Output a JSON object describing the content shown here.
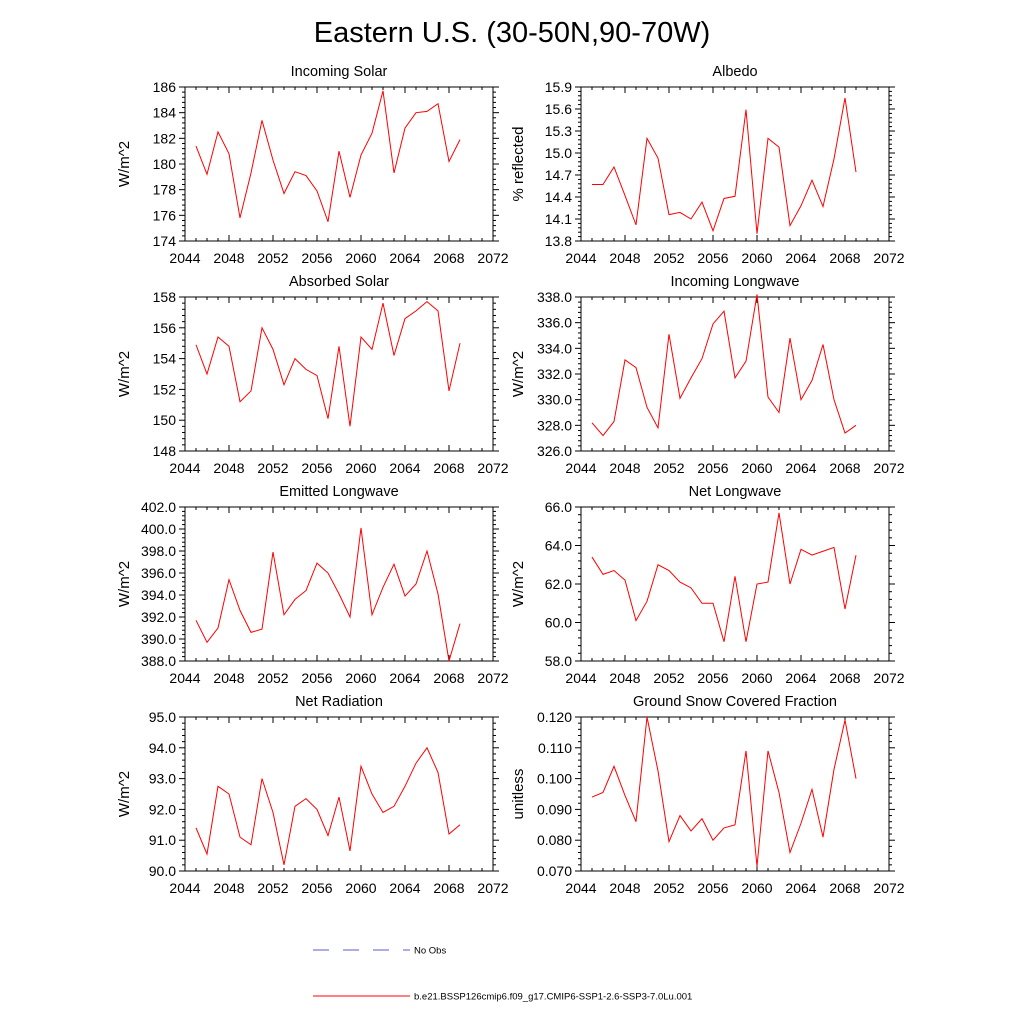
{
  "figure_title": "Eastern U.S. (30-50N,90-70W)",
  "legend": {
    "obs_label": "No Obs",
    "obs_color": "#5a5ad0",
    "model_label": "b.e21.BSSP126cmip6.f09_g17.CMIP6-SSP1-2.6-SSP3-7.0Lu.001",
    "model_color": "#ff0000"
  },
  "chart_data": [
    {
      "type": "line",
      "title": "Incoming Solar",
      "xlabel": "",
      "ylabel": "W/m^2",
      "xlim": [
        2044,
        2072
      ],
      "xticks": [
        "2044",
        "2048",
        "2052",
        "2056",
        "2060",
        "2064",
        "2068",
        "2072"
      ],
      "ylim": [
        174,
        186
      ],
      "yticks": [
        "174",
        "176",
        "178",
        "180",
        "182",
        "184",
        "186"
      ],
      "series": [
        {
          "name": "",
          "color": "#ff0000",
          "x": [
            2045,
            2046,
            2047,
            2048,
            2049,
            2050,
            2051,
            2052,
            2053,
            2054,
            2055,
            2056,
            2057,
            2058,
            2059,
            2060,
            2061,
            2062,
            2063,
            2064,
            2065,
            2066,
            2067,
            2068,
            2069
          ],
          "values": [
            181.4,
            179.2,
            182.5,
            180.8,
            175.8,
            179.3,
            183.4,
            180.3,
            177.7,
            179.4,
            179.1,
            177.9,
            175.5,
            181.0,
            177.4,
            180.7,
            182.4,
            185.7,
            179.3,
            182.8,
            184.0,
            184.1,
            184.7,
            180.2,
            181.9
          ]
        }
      ]
    },
    {
      "type": "line",
      "title": "Albedo",
      "xlabel": "",
      "ylabel": "% reflected",
      "xlim": [
        2044,
        2072
      ],
      "xticks": [
        "2044",
        "2048",
        "2052",
        "2056",
        "2060",
        "2064",
        "2068",
        "2072"
      ],
      "ylim": [
        13.8,
        15.9
      ],
      "yticks": [
        "13.8",
        "14.1",
        "14.4",
        "14.7",
        "15.0",
        "15.3",
        "15.6",
        "15.9"
      ],
      "series": [
        {
          "name": "",
          "color": "#ff0000",
          "x": [
            2045,
            2046,
            2047,
            2048,
            2049,
            2050,
            2051,
            2052,
            2053,
            2054,
            2055,
            2056,
            2057,
            2058,
            2059,
            2060,
            2061,
            2062,
            2063,
            2064,
            2065,
            2066,
            2067,
            2068,
            2069
          ],
          "values": [
            14.57,
            14.57,
            14.81,
            14.42,
            14.02,
            15.2,
            14.93,
            14.16,
            14.19,
            14.1,
            14.33,
            13.94,
            14.38,
            14.41,
            15.59,
            13.9,
            15.2,
            15.08,
            14.01,
            14.28,
            14.63,
            14.27,
            14.92,
            15.75,
            14.74
          ]
        }
      ]
    },
    {
      "type": "line",
      "title": "Absorbed Solar",
      "xlabel": "",
      "ylabel": "W/m^2",
      "xlim": [
        2044,
        2072
      ],
      "xticks": [
        "2044",
        "2048",
        "2052",
        "2056",
        "2060",
        "2064",
        "2068",
        "2072"
      ],
      "ylim": [
        148,
        158
      ],
      "yticks": [
        "148",
        "150",
        "152",
        "154",
        "156",
        "158"
      ],
      "series": [
        {
          "name": "",
          "color": "#ff0000",
          "x": [
            2045,
            2046,
            2047,
            2048,
            2049,
            2050,
            2051,
            2052,
            2053,
            2054,
            2055,
            2056,
            2057,
            2058,
            2059,
            2060,
            2061,
            2062,
            2063,
            2064,
            2065,
            2066,
            2067,
            2068,
            2069
          ],
          "values": [
            154.9,
            153.0,
            155.4,
            154.8,
            151.2,
            151.9,
            156.0,
            154.6,
            152.3,
            154.0,
            153.3,
            152.9,
            150.1,
            154.8,
            149.6,
            155.4,
            154.6,
            157.6,
            154.2,
            156.6,
            157.1,
            157.7,
            157.1,
            151.9,
            155.0
          ]
        }
      ]
    },
    {
      "type": "line",
      "title": "Incoming Longwave",
      "xlabel": "",
      "ylabel": "W/m^2",
      "xlim": [
        2044,
        2072
      ],
      "xticks": [
        "2044",
        "2048",
        "2052",
        "2056",
        "2060",
        "2064",
        "2068",
        "2072"
      ],
      "ylim": [
        326,
        338
      ],
      "yticks": [
        "326.0",
        "328.0",
        "330.0",
        "332.0",
        "334.0",
        "336.0",
        "338.0"
      ],
      "series": [
        {
          "name": "",
          "color": "#ff0000",
          "x": [
            2045,
            2046,
            2047,
            2048,
            2049,
            2050,
            2051,
            2052,
            2053,
            2054,
            2055,
            2056,
            2057,
            2058,
            2059,
            2060,
            2061,
            2062,
            2063,
            2064,
            2065,
            2066,
            2067,
            2068,
            2069
          ],
          "values": [
            328.2,
            327.2,
            328.3,
            333.1,
            332.5,
            329.4,
            327.8,
            335.1,
            330.1,
            331.7,
            333.2,
            335.9,
            336.9,
            331.7,
            333.0,
            338.2,
            330.2,
            329.0,
            334.8,
            330.0,
            331.5,
            334.3,
            330.0,
            327.4,
            328.0
          ]
        }
      ]
    },
    {
      "type": "line",
      "title": "Emitted Longwave",
      "xlabel": "",
      "ylabel": "W/m^2",
      "xlim": [
        2044,
        2072
      ],
      "xticks": [
        "2044",
        "2048",
        "2052",
        "2056",
        "2060",
        "2064",
        "2068",
        "2072"
      ],
      "ylim": [
        388,
        402
      ],
      "yticks": [
        "388.0",
        "390.0",
        "392.0",
        "394.0",
        "396.0",
        "398.0",
        "400.0",
        "402.0"
      ],
      "series": [
        {
          "name": "",
          "color": "#ff0000",
          "x": [
            2045,
            2046,
            2047,
            2048,
            2049,
            2050,
            2051,
            2052,
            2053,
            2054,
            2055,
            2056,
            2057,
            2058,
            2059,
            2060,
            2061,
            2062,
            2063,
            2064,
            2065,
            2066,
            2067,
            2068,
            2069
          ],
          "values": [
            391.7,
            389.7,
            391.0,
            395.4,
            392.6,
            390.6,
            390.9,
            397.9,
            392.2,
            393.6,
            394.4,
            396.9,
            396.0,
            394.1,
            392.0,
            400.1,
            392.2,
            394.7,
            396.8,
            393.9,
            395.0,
            398.0,
            394.1,
            388.0,
            391.4
          ]
        }
      ]
    },
    {
      "type": "line",
      "title": "Net Longwave",
      "xlabel": "",
      "ylabel": "W/m^2",
      "xlim": [
        2044,
        2072
      ],
      "xticks": [
        "2044",
        "2048",
        "2052",
        "2056",
        "2060",
        "2064",
        "2068",
        "2072"
      ],
      "ylim": [
        58,
        66
      ],
      "yticks": [
        "58.0",
        "60.0",
        "62.0",
        "64.0",
        "66.0"
      ],
      "series": [
        {
          "name": "",
          "color": "#ff0000",
          "x": [
            2045,
            2046,
            2047,
            2048,
            2049,
            2050,
            2051,
            2052,
            2053,
            2054,
            2055,
            2056,
            2057,
            2058,
            2059,
            2060,
            2061,
            2062,
            2063,
            2064,
            2065,
            2066,
            2067,
            2068,
            2069
          ],
          "values": [
            63.4,
            62.5,
            62.7,
            62.2,
            60.1,
            61.1,
            63.0,
            62.7,
            62.1,
            61.8,
            61.0,
            61.0,
            59.0,
            62.4,
            59.0,
            62.0,
            62.1,
            65.7,
            62.0,
            63.8,
            63.5,
            63.7,
            63.9,
            60.7,
            63.5
          ]
        }
      ]
    },
    {
      "type": "line",
      "title": "Net Radiation",
      "xlabel": "",
      "ylabel": "W/m^2",
      "xlim": [
        2044,
        2072
      ],
      "xticks": [
        "2044",
        "2048",
        "2052",
        "2056",
        "2060",
        "2064",
        "2068",
        "2072"
      ],
      "ylim": [
        90,
        95
      ],
      "yticks": [
        "90.0",
        "91.0",
        "92.0",
        "93.0",
        "94.0",
        "95.0"
      ],
      "series": [
        {
          "name": "",
          "color": "#ff0000",
          "x": [
            2045,
            2046,
            2047,
            2048,
            2049,
            2050,
            2051,
            2052,
            2053,
            2054,
            2055,
            2056,
            2057,
            2058,
            2059,
            2060,
            2061,
            2062,
            2063,
            2064,
            2065,
            2066,
            2067,
            2068,
            2069
          ],
          "values": [
            91.4,
            90.55,
            92.75,
            92.5,
            91.1,
            90.85,
            93.0,
            91.9,
            90.2,
            92.1,
            92.35,
            92.0,
            91.15,
            92.4,
            90.65,
            93.4,
            92.5,
            91.9,
            92.1,
            92.75,
            93.5,
            94.0,
            93.2,
            91.2,
            91.5
          ]
        }
      ]
    },
    {
      "type": "line",
      "title": "Ground Snow Covered Fraction",
      "xlabel": "",
      "ylabel": "unitless",
      "xlim": [
        2044,
        2072
      ],
      "xticks": [
        "2044",
        "2048",
        "2052",
        "2056",
        "2060",
        "2064",
        "2068",
        "2072"
      ],
      "ylim": [
        0.07,
        0.12
      ],
      "yticks": [
        "0.070",
        "0.080",
        "0.090",
        "0.100",
        "0.110",
        "0.120"
      ],
      "series": [
        {
          "name": "",
          "color": "#ff0000",
          "x": [
            2045,
            2046,
            2047,
            2048,
            2049,
            2050,
            2051,
            2052,
            2053,
            2054,
            2055,
            2056,
            2057,
            2058,
            2059,
            2060,
            2061,
            2062,
            2063,
            2064,
            2065,
            2066,
            2067,
            2068,
            2069
          ],
          "values": [
            0.094,
            0.0955,
            0.104,
            0.0945,
            0.086,
            0.12,
            0.1025,
            0.0795,
            0.088,
            0.083,
            0.087,
            0.08,
            0.084,
            0.085,
            0.109,
            0.0715,
            0.109,
            0.0955,
            0.076,
            0.0855,
            0.0965,
            0.081,
            0.103,
            0.119,
            0.1
          ]
        }
      ]
    }
  ]
}
